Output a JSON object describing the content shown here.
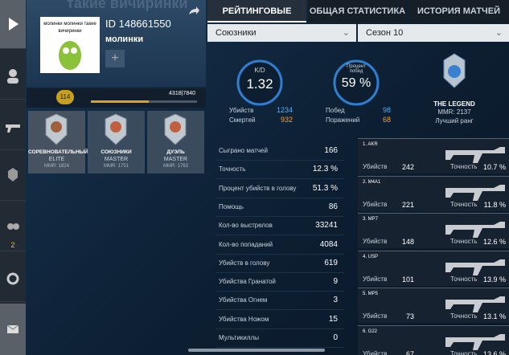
{
  "profile": {
    "background_text": "такие вичиринки",
    "id": "ID 148661550",
    "name": "молинки",
    "avatar_text": "молинки молинки такие вичиринки",
    "level": "114",
    "xp": "4318|7840"
  },
  "ranks": [
    {
      "mode": "СОРЕВНОВАТЕЛЬНЫЙ",
      "rank": "ELITE",
      "mmr": "MMR: 1824"
    },
    {
      "mode": "СОЮЗНИКИ",
      "rank": "MASTER",
      "mmr": "MMR: 1751"
    },
    {
      "mode": "ДУЭЛЬ",
      "rank": "MASTER",
      "mmr": "MMR: 1763"
    }
  ],
  "sidebar": {
    "friends_count": "2"
  },
  "tabs": [
    "РЕЙТИНГОВЫЕ",
    "ОБЩАЯ СТАТИСТИКА",
    "ИСТОРИЯ МАТЧЕЙ"
  ],
  "filters": {
    "mode": "Союзники",
    "season": "Сезон 10"
  },
  "summary": {
    "kd_label": "K/D",
    "kd": "1.32",
    "win_label": "Процент побед",
    "win": "59 %",
    "best_rank": "THE LEGEND",
    "best_mmr": "MMR: 2137",
    "best_label": "Лучший ранг",
    "kills_label": "Убийств",
    "kills": "1234",
    "deaths_label": "Смертей",
    "deaths": "932",
    "wins_label": "Побед",
    "wins": "98",
    "losses_label": "Поражений",
    "losses": "68"
  },
  "stats": [
    [
      "Сыграно матчей",
      "166"
    ],
    [
      "Точность",
      "12.3 %"
    ],
    [
      "Процент убийств в голову",
      "51.3 %"
    ],
    [
      "Помощь",
      "86"
    ],
    [
      "Кол-во выстрелов",
      "33241"
    ],
    [
      "Кол-во попаданий",
      "4084"
    ],
    [
      "Убийств в голову",
      "619"
    ],
    [
      "Убийства Гранатой",
      "9"
    ],
    [
      "Убийства Огнем",
      "3"
    ],
    [
      "Убийства Ножом",
      "15"
    ],
    [
      "Мультикиллы",
      "0"
    ]
  ],
  "weapon_labels": {
    "kills": "Убийств",
    "accuracy": "Точность"
  },
  "weapons": [
    {
      "name": "1. AKR",
      "kills": "242",
      "accuracy": "10.7 %"
    },
    {
      "name": "2. M4A1",
      "kills": "221",
      "accuracy": "11.8 %"
    },
    {
      "name": "3. MP7",
      "kills": "148",
      "accuracy": "12.6 %"
    },
    {
      "name": "4. USP",
      "kills": "101",
      "accuracy": "13.9 %"
    },
    {
      "name": "5. MP5",
      "kills": "73",
      "accuracy": "13.1 %"
    },
    {
      "name": "6. G22",
      "kills": "67",
      "accuracy": "13.6 %"
    }
  ]
}
